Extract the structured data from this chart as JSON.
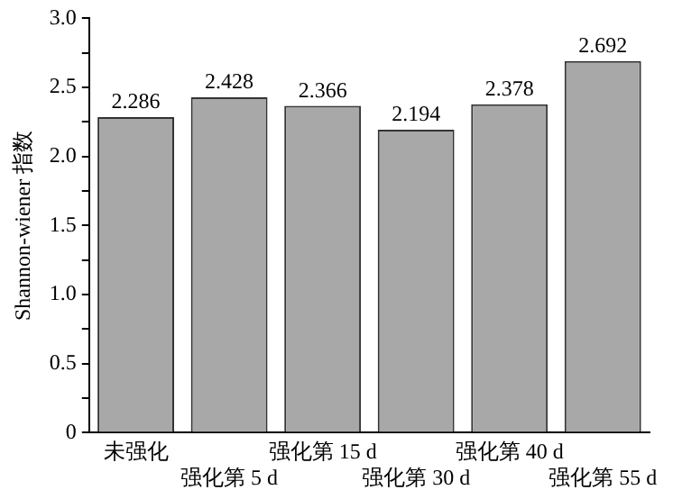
{
  "chart_data": {
    "type": "bar",
    "ylabel": "Shannon-wiener 指数",
    "categories": [
      "未强化",
      "强化第 5 d",
      "强化第 15 d",
      "强化第 30 d",
      "强化第 40 d",
      "强化第 55 d"
    ],
    "values": [
      2.286,
      2.428,
      2.366,
      2.194,
      2.378,
      2.692
    ],
    "color": "#a8a8a8",
    "ylim": [
      0,
      3.0
    ],
    "yticks": [
      {
        "value": 0,
        "label": "0"
      },
      {
        "value": 0.25,
        "label": null
      },
      {
        "value": 0.5,
        "label": "0.5"
      },
      {
        "value": 0.75,
        "label": null
      },
      {
        "value": 1.0,
        "label": "1.0"
      },
      {
        "value": 1.25,
        "label": null
      },
      {
        "value": 1.5,
        "label": "1.5"
      },
      {
        "value": 1.75,
        "label": null
      },
      {
        "value": 2.0,
        "label": "2.0"
      },
      {
        "value": 2.25,
        "label": null
      },
      {
        "value": 2.5,
        "label": "2.5"
      },
      {
        "value": 2.75,
        "label": null
      },
      {
        "value": 3.0,
        "label": "3.0"
      }
    ],
    "data_labels": true,
    "grid": false,
    "legend": false
  }
}
